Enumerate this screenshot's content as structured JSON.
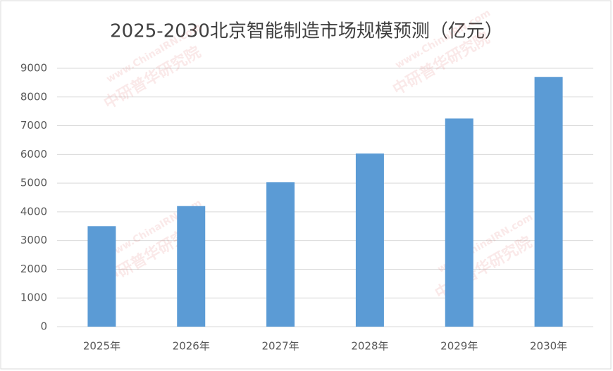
{
  "chart_data": {
    "type": "bar",
    "title": "2025-2030北京智能制造市场规模预测（亿元）",
    "categories": [
      "2025年",
      "2026年",
      "2027年",
      "2028年",
      "2029年",
      "2030年"
    ],
    "values": [
      3500,
      4200,
      5030,
      6030,
      7250,
      8700
    ],
    "color": "#5b9bd5",
    "ylim": [
      0,
      9000
    ],
    "yticks": [
      0,
      1000,
      2000,
      3000,
      4000,
      5000,
      6000,
      7000,
      8000,
      9000
    ],
    "grid": true,
    "watermark": [
      "www.ChinaIRN.com",
      "中研普华研究院"
    ]
  }
}
